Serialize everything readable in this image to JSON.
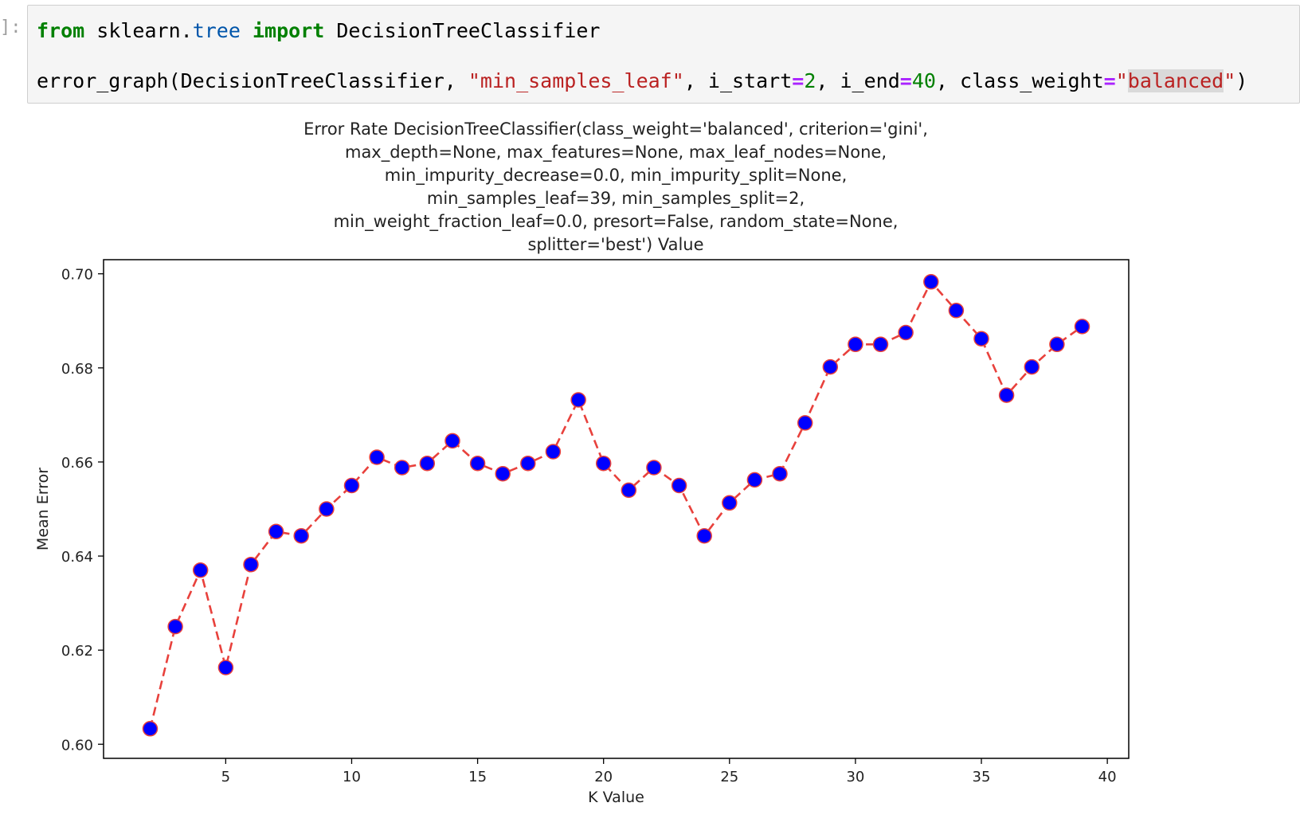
{
  "cell": {
    "prompt": "]:",
    "code": {
      "line1": {
        "kw_from": "from",
        "module_pkg": "sklearn.",
        "module_sub": "tree",
        "kw_import": "import",
        "name": "DecisionTreeClassifier"
      },
      "line2": {
        "func_call": "error_graph(DecisionTreeClassifier, ",
        "param_string": "\"min_samples_leaf\"",
        "sep1": ", i_start",
        "eq1": "=",
        "start_val": "2",
        "sep2": ", i_end",
        "eq2": "=",
        "end_val": "40",
        "sep3": ", class_weight",
        "eq3": "=",
        "quote_open": "\"",
        "weight_val": "balanced",
        "quote_close": "\"",
        "paren_close": ")"
      }
    }
  },
  "colors": {
    "line": "#e8413c",
    "marker_fill": "#0000ff",
    "marker_edge": "#e8413c"
  },
  "chart_data": {
    "type": "line",
    "title": [
      "Error Rate DecisionTreeClassifier(class_weight='balanced', criterion='gini',",
      "max_depth=None, max_features=None, max_leaf_nodes=None,",
      "min_impurity_decrease=0.0, min_impurity_split=None,",
      "min_samples_leaf=39, min_samples_split=2,",
      "min_weight_fraction_leaf=0.0, presort=False, random_state=None,",
      "splitter='best') Value"
    ],
    "xlabel": "K Value",
    "ylabel": "Mean Error",
    "xlim": [
      0.15,
      40.85
    ],
    "ylim": [
      0.597,
      0.703
    ],
    "xticks": [
      5,
      10,
      15,
      20,
      25,
      30,
      35,
      40
    ],
    "yticks": [
      0.6,
      0.62,
      0.64,
      0.66,
      0.68,
      0.7
    ],
    "ytick_labels": [
      "0.60",
      "0.62",
      "0.64",
      "0.66",
      "0.68",
      "0.70"
    ],
    "grid": false,
    "line_style": "dashed",
    "marker": "circle",
    "x": [
      2,
      3,
      4,
      5,
      6,
      7,
      8,
      9,
      10,
      11,
      12,
      13,
      14,
      15,
      16,
      17,
      18,
      19,
      20,
      21,
      22,
      23,
      24,
      25,
      26,
      27,
      28,
      29,
      30,
      31,
      32,
      33,
      34,
      35,
      36,
      37,
      38,
      39
    ],
    "y": [
      0.6033,
      0.625,
      0.637,
      0.6163,
      0.6382,
      0.6452,
      0.6443,
      0.65,
      0.655,
      0.661,
      0.6588,
      0.6597,
      0.6645,
      0.6597,
      0.6575,
      0.6597,
      0.6622,
      0.6732,
      0.6597,
      0.654,
      0.6588,
      0.655,
      0.6443,
      0.6513,
      0.6562,
      0.6575,
      0.6683,
      0.6802,
      0.685,
      0.685,
      0.6875,
      0.6983,
      0.6922,
      0.6862,
      0.6742,
      0.6802,
      0.685,
      0.6888
    ]
  }
}
